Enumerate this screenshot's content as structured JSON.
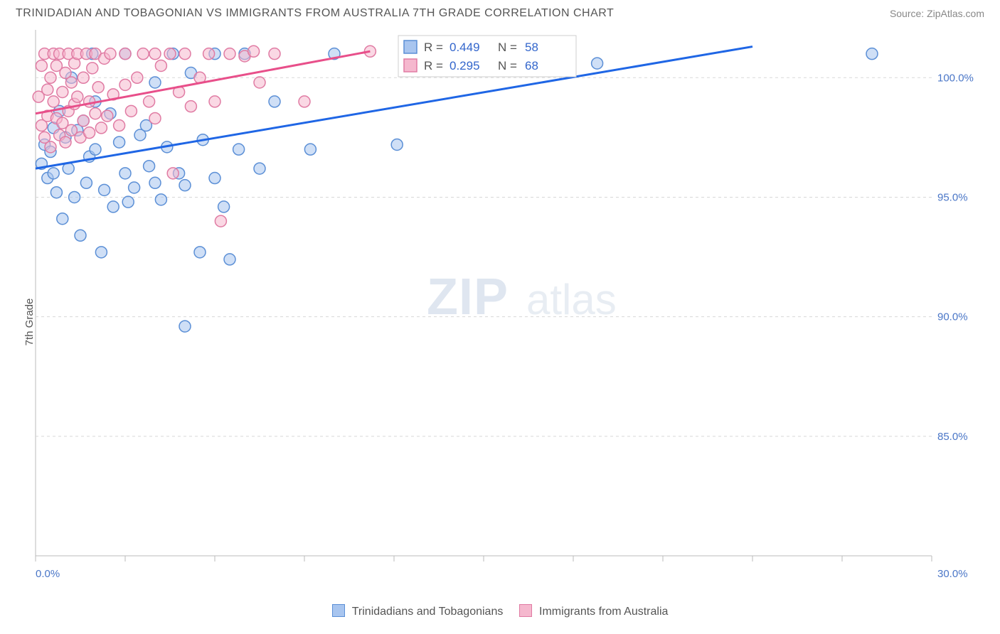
{
  "header": {
    "title": "TRINIDADIAN AND TOBAGONIAN VS IMMIGRANTS FROM AUSTRALIA 7TH GRADE CORRELATION CHART",
    "source": "Source: ZipAtlas.com"
  },
  "chart": {
    "type": "scatter",
    "ylabel": "7th Grade",
    "xlim": [
      0,
      30
    ],
    "ylim": [
      80,
      102
    ],
    "xtick_positions": [
      0,
      3,
      6,
      9,
      12,
      15,
      18,
      21,
      24,
      27,
      30
    ],
    "xtick_labels": {
      "0": "0.0%",
      "30": "30.0%"
    },
    "ytick_positions": [
      85,
      90,
      95,
      100
    ],
    "ytick_labels": [
      "85.0%",
      "90.0%",
      "95.0%",
      "100.0%"
    ],
    "grid_color": "#d8d8d8",
    "background_color": "#ffffff",
    "marker_radius": 8,
    "watermark": {
      "part1": "ZIP",
      "part2": "atlas"
    },
    "series": [
      {
        "name": "Trinidadians and Tobagonians",
        "color_fill": "#a8c5ef",
        "color_stroke": "#5b8fd6",
        "line_color": "#1f66e5",
        "R": 0.449,
        "N": 58,
        "regression": {
          "x1": 0,
          "y1": 96.2,
          "x2": 24,
          "y2": 101.3
        },
        "points": [
          [
            0.2,
            96.4
          ],
          [
            0.3,
            97.2
          ],
          [
            0.4,
            95.8
          ],
          [
            0.5,
            96.9
          ],
          [
            0.6,
            97.9
          ],
          [
            0.6,
            96.0
          ],
          [
            0.7,
            95.2
          ],
          [
            0.8,
            98.6
          ],
          [
            0.9,
            94.1
          ],
          [
            1.0,
            97.5
          ],
          [
            1.1,
            96.2
          ],
          [
            1.2,
            100.0
          ],
          [
            1.3,
            95.0
          ],
          [
            1.4,
            97.8
          ],
          [
            1.5,
            93.4
          ],
          [
            1.6,
            98.2
          ],
          [
            1.7,
            95.6
          ],
          [
            1.8,
            96.7
          ],
          [
            1.9,
            101.0
          ],
          [
            2.0,
            97.0
          ],
          [
            2.0,
            99.0
          ],
          [
            2.2,
            92.7
          ],
          [
            2.3,
            95.3
          ],
          [
            2.5,
            98.5
          ],
          [
            2.6,
            94.6
          ],
          [
            2.8,
            97.3
          ],
          [
            3.0,
            96.0
          ],
          [
            3.0,
            101.0
          ],
          [
            3.1,
            94.8
          ],
          [
            3.3,
            95.4
          ],
          [
            3.5,
            97.6
          ],
          [
            3.7,
            98.0
          ],
          [
            3.8,
            96.3
          ],
          [
            4.0,
            95.6
          ],
          [
            4.0,
            99.8
          ],
          [
            4.2,
            94.9
          ],
          [
            4.4,
            97.1
          ],
          [
            4.6,
            101.0
          ],
          [
            4.8,
            96.0
          ],
          [
            5.0,
            95.5
          ],
          [
            5.0,
            89.6
          ],
          [
            5.2,
            100.2
          ],
          [
            5.5,
            92.7
          ],
          [
            5.6,
            97.4
          ],
          [
            6.0,
            95.8
          ],
          [
            6.0,
            101.0
          ],
          [
            6.3,
            94.6
          ],
          [
            6.5,
            92.4
          ],
          [
            6.8,
            97.0
          ],
          [
            7.0,
            101.0
          ],
          [
            7.5,
            96.2
          ],
          [
            8.0,
            99.0
          ],
          [
            9.2,
            97.0
          ],
          [
            10.0,
            101.0
          ],
          [
            12.1,
            97.2
          ],
          [
            14.5,
            101.0
          ],
          [
            18.8,
            100.6
          ],
          [
            28.0,
            101.0
          ]
        ]
      },
      {
        "name": "Immigrants from Australia",
        "color_fill": "#f5b8ce",
        "color_stroke": "#e07ba3",
        "line_color": "#e84f8a",
        "R": 0.295,
        "N": 68,
        "regression": {
          "x1": 0,
          "y1": 98.5,
          "x2": 11.2,
          "y2": 101.1
        },
        "points": [
          [
            0.1,
            99.2
          ],
          [
            0.2,
            98.0
          ],
          [
            0.2,
            100.5
          ],
          [
            0.3,
            97.5
          ],
          [
            0.3,
            101.0
          ],
          [
            0.4,
            99.5
          ],
          [
            0.4,
            98.4
          ],
          [
            0.5,
            100.0
          ],
          [
            0.5,
            97.1
          ],
          [
            0.6,
            101.0
          ],
          [
            0.6,
            99.0
          ],
          [
            0.7,
            98.3
          ],
          [
            0.7,
            100.5
          ],
          [
            0.8,
            97.6
          ],
          [
            0.8,
            101.0
          ],
          [
            0.9,
            99.4
          ],
          [
            0.9,
            98.1
          ],
          [
            1.0,
            100.2
          ],
          [
            1.0,
            97.3
          ],
          [
            1.1,
            101.0
          ],
          [
            1.1,
            98.6
          ],
          [
            1.2,
            99.8
          ],
          [
            1.2,
            97.8
          ],
          [
            1.3,
            100.6
          ],
          [
            1.3,
            98.9
          ],
          [
            1.4,
            101.0
          ],
          [
            1.4,
            99.2
          ],
          [
            1.5,
            97.5
          ],
          [
            1.6,
            100.0
          ],
          [
            1.6,
            98.2
          ],
          [
            1.7,
            101.0
          ],
          [
            1.8,
            99.0
          ],
          [
            1.8,
            97.7
          ],
          [
            1.9,
            100.4
          ],
          [
            2.0,
            98.5
          ],
          [
            2.0,
            101.0
          ],
          [
            2.1,
            99.6
          ],
          [
            2.2,
            97.9
          ],
          [
            2.3,
            100.8
          ],
          [
            2.4,
            98.4
          ],
          [
            2.5,
            101.0
          ],
          [
            2.6,
            99.3
          ],
          [
            2.8,
            98.0
          ],
          [
            3.0,
            101.0
          ],
          [
            3.0,
            99.7
          ],
          [
            3.2,
            98.6
          ],
          [
            3.4,
            100.0
          ],
          [
            3.6,
            101.0
          ],
          [
            3.8,
            99.0
          ],
          [
            4.0,
            101.0
          ],
          [
            4.0,
            98.3
          ],
          [
            4.2,
            100.5
          ],
          [
            4.5,
            101.0
          ],
          [
            4.6,
            96.0
          ],
          [
            4.8,
            99.4
          ],
          [
            5.0,
            101.0
          ],
          [
            5.2,
            98.8
          ],
          [
            5.5,
            100.0
          ],
          [
            5.8,
            101.0
          ],
          [
            6.0,
            99.0
          ],
          [
            6.2,
            94.0
          ],
          [
            6.5,
            101.0
          ],
          [
            7.0,
            100.9
          ],
          [
            7.3,
            101.1
          ],
          [
            7.5,
            99.8
          ],
          [
            8.0,
            101.0
          ],
          [
            9.0,
            99.0
          ],
          [
            11.2,
            101.1
          ]
        ]
      }
    ],
    "legend_top": {
      "labels": {
        "R": "R =",
        "N": "N ="
      }
    },
    "bottom_legend_labels": [
      "Trinidadians and Tobagonians",
      "Immigrants from Australia"
    ]
  }
}
